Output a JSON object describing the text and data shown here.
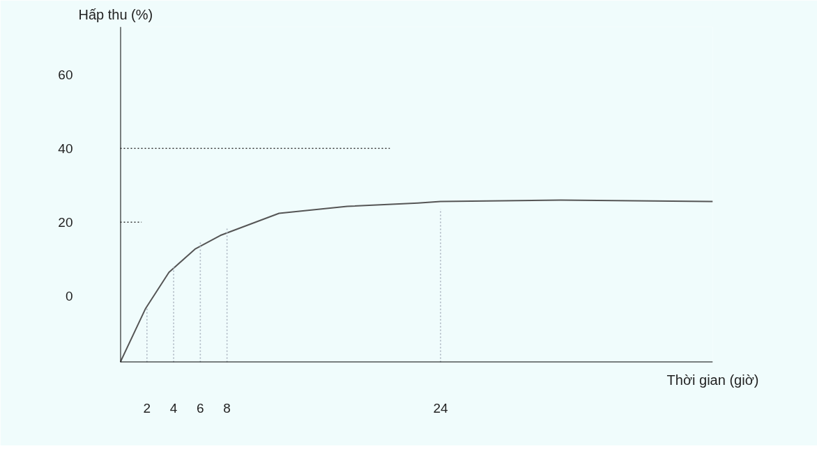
{
  "chart_data": {
    "type": "line",
    "xlabel": "Thời gian (giờ)",
    "ylabel": "Hấp thu (%)",
    "xlim": [
      0,
      44.4
    ],
    "ylim": [
      -18,
      73
    ],
    "xticks": [
      2,
      4,
      6,
      8,
      24
    ],
    "yticks": [
      60,
      40,
      20,
      0
    ],
    "grid": false,
    "series": [
      {
        "color": "#555555",
        "line_style": "solid",
        "x": [
          0,
          1.9,
          3.65,
          5.6,
          7.5,
          11.9,
          17,
          22.3,
          24,
          33,
          44.4
        ],
        "values": [
          -18,
          -3.4,
          6.4,
          12.7,
          16.4,
          22.4,
          24.3,
          25.2,
          25.6,
          26,
          25.6
        ]
      },
      {
        "color": "#333333",
        "line_style": "dotted",
        "x": [
          0,
          20.2
        ],
        "values": [
          40,
          40
        ]
      },
      {
        "color": "#333333",
        "line_style": "dotted",
        "x": [
          0,
          1.6
        ],
        "values": [
          20,
          20
        ]
      },
      {
        "color": "#aab4c0",
        "line_style": "dotted",
        "x": [
          2,
          2
        ],
        "values": [
          -18,
          -3
        ]
      },
      {
        "color": "#aab4c0",
        "line_style": "dotted",
        "x": [
          4,
          4
        ],
        "values": [
          -18,
          7.9
        ]
      },
      {
        "color": "#aab4c0",
        "line_style": "dotted",
        "x": [
          6,
          6
        ],
        "values": [
          -18,
          14.6
        ]
      },
      {
        "color": "#aab4c0",
        "line_style": "dotted",
        "x": [
          8,
          8
        ],
        "values": [
          -18,
          18.3
        ]
      },
      {
        "color": "#aab4c0",
        "line_style": "dotted",
        "x": [
          24,
          24
        ],
        "values": [
          -18,
          23.6
        ]
      }
    ]
  }
}
